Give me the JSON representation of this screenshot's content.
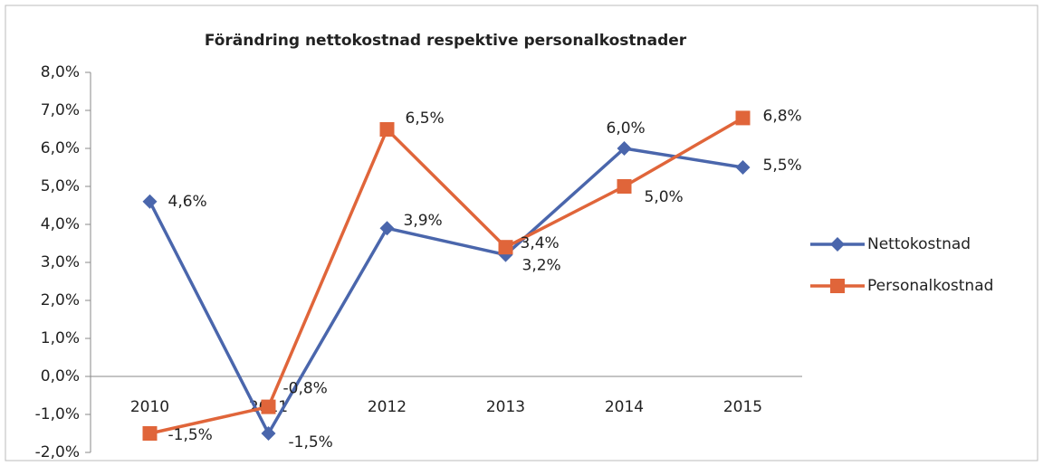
{
  "chart_data": {
    "type": "line",
    "title": "Förändring nettokostnad respektive personalkostnader",
    "categories": [
      "2010",
      "2011",
      "2012",
      "2013",
      "2014",
      "2015"
    ],
    "series": [
      {
        "name": "Nettokostnad",
        "color": "#4a66ac",
        "marker": "diamond",
        "values": [
          4.6,
          -1.5,
          3.9,
          3.2,
          6.0,
          5.5
        ],
        "value_labels": [
          "4,6%",
          "-1,5%",
          "3,9%",
          "3,2%",
          "6,0%",
          "5,5%"
        ]
      },
      {
        "name": "Personalkostnad",
        "color": "#e0653a",
        "marker": "square",
        "values": [
          -1.5,
          -0.8,
          6.5,
          3.4,
          5.0,
          6.8
        ],
        "value_labels": [
          "-1,5%",
          "-0,8%",
          "6,5%",
          "3,4%",
          "5,0%",
          "6,8%"
        ]
      }
    ],
    "ylim": [
      -2,
      8
    ],
    "yticks": [
      {
        "value": -2,
        "label": "-2,0%"
      },
      {
        "value": -1,
        "label": "-1,0%"
      },
      {
        "value": 0,
        "label": "0,0%"
      },
      {
        "value": 1,
        "label": "1,0%"
      },
      {
        "value": 2,
        "label": "2,0%"
      },
      {
        "value": 3,
        "label": "3,0%"
      },
      {
        "value": 4,
        "label": "4,0%"
      },
      {
        "value": 5,
        "label": "5,0%"
      },
      {
        "value": 6,
        "label": "6,0%"
      },
      {
        "value": 7,
        "label": "7,0%"
      },
      {
        "value": 8,
        "label": "8,0%"
      }
    ],
    "legend": "right"
  }
}
